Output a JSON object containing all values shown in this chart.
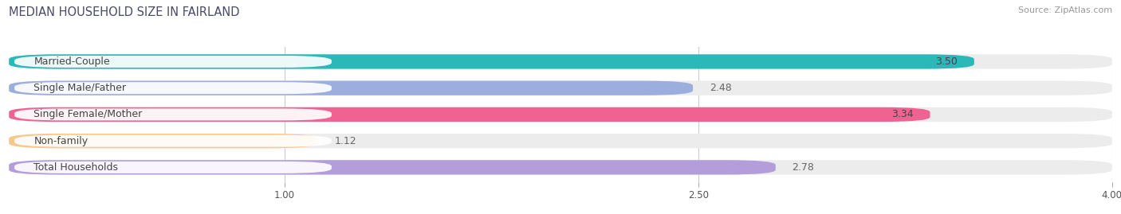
{
  "title": "MEDIAN HOUSEHOLD SIZE IN FAIRLAND",
  "source": "Source: ZipAtlas.com",
  "categories": [
    "Married-Couple",
    "Single Male/Father",
    "Single Female/Mother",
    "Non-family",
    "Total Households"
  ],
  "values": [
    3.5,
    2.48,
    3.34,
    1.12,
    2.78
  ],
  "bar_colors": [
    "#2ab8b8",
    "#9baede",
    "#f06292",
    "#f5c98a",
    "#b39ddb"
  ],
  "background_color": "#ffffff",
  "bar_bg_color": "#ececec",
  "xlim": [
    0,
    4.0
  ],
  "xticks": [
    1.0,
    2.5,
    4.0
  ],
  "title_fontsize": 10.5,
  "source_fontsize": 8,
  "label_fontsize": 9,
  "value_fontsize": 9
}
